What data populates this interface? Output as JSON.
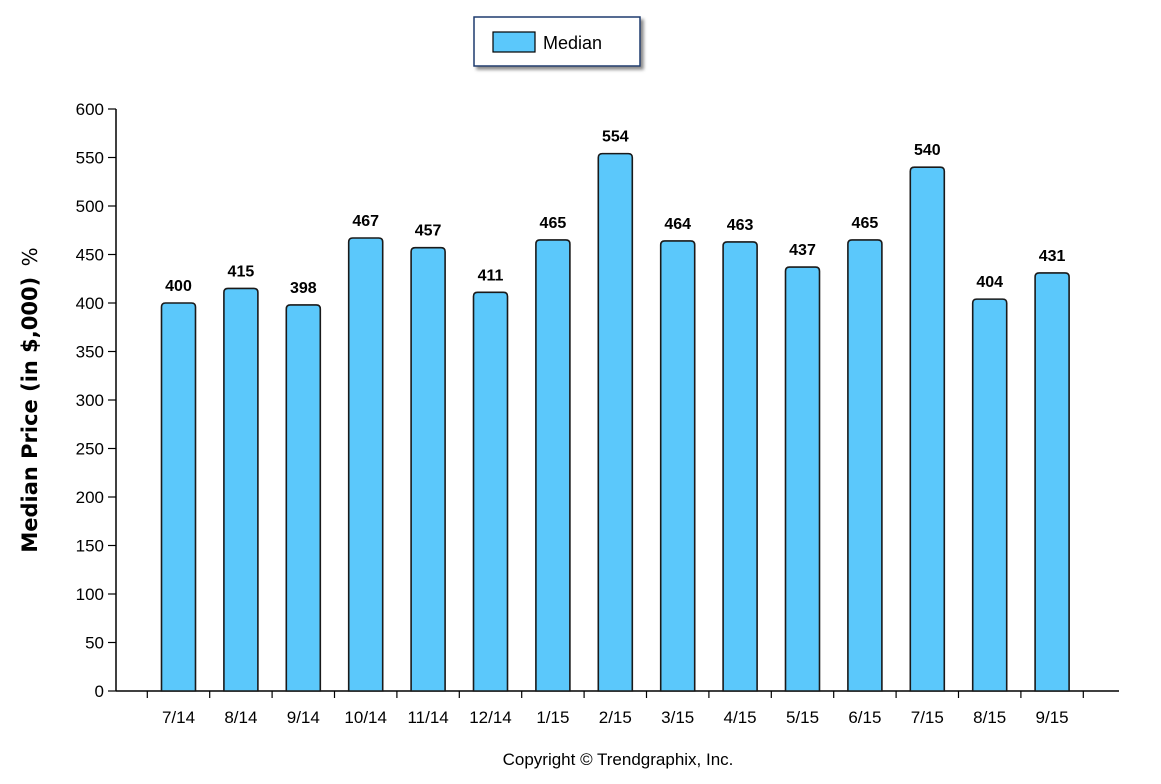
{
  "chart_data": {
    "type": "bar",
    "categories": [
      "7/14",
      "8/14",
      "9/14",
      "10/14",
      "11/14",
      "12/14",
      "1/15",
      "2/15",
      "3/15",
      "4/15",
      "5/15",
      "6/15",
      "7/15",
      "8/15",
      "9/15"
    ],
    "series": [
      {
        "name": "Median",
        "values": [
          400,
          415,
          398,
          467,
          457,
          411,
          465,
          554,
          464,
          463,
          437,
          465,
          540,
          404,
          431
        ],
        "color": "#5BC8FB"
      }
    ],
    "ylabel": "Median Price (in $,000)",
    "ylabel_suffix": "%",
    "xlabel": "",
    "ylim": [
      0,
      600
    ],
    "yticks": [
      0,
      50,
      100,
      150,
      200,
      250,
      300,
      350,
      400,
      450,
      500,
      550,
      600
    ],
    "legend_position": "top-center",
    "grid": false,
    "data_labels": true
  },
  "footer": {
    "copyright": "Copyright © Trendgraphix, Inc."
  }
}
